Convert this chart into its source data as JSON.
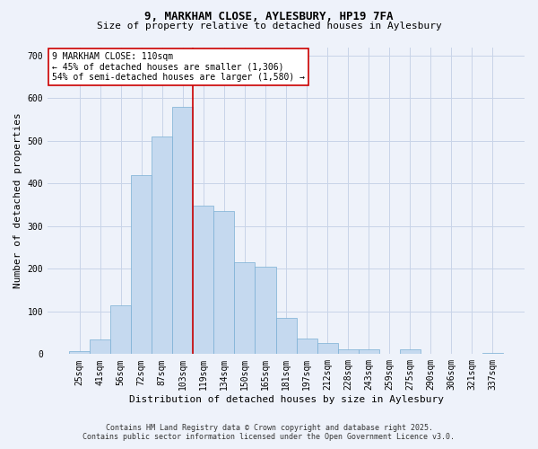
{
  "title1": "9, MARKHAM CLOSE, AYLESBURY, HP19 7FA",
  "title2": "Size of property relative to detached houses in Aylesbury",
  "xlabel": "Distribution of detached houses by size in Aylesbury",
  "ylabel": "Number of detached properties",
  "bar_labels": [
    "25sqm",
    "41sqm",
    "56sqm",
    "72sqm",
    "87sqm",
    "103sqm",
    "119sqm",
    "134sqm",
    "150sqm",
    "165sqm",
    "181sqm",
    "197sqm",
    "212sqm",
    "228sqm",
    "243sqm",
    "259sqm",
    "275sqm",
    "290sqm",
    "306sqm",
    "321sqm",
    "337sqm"
  ],
  "bar_values": [
    8,
    35,
    115,
    420,
    510,
    580,
    348,
    335,
    215,
    205,
    85,
    36,
    25,
    12,
    12,
    0,
    12,
    0,
    0,
    0,
    3
  ],
  "bar_color": "#c5d9ef",
  "bar_edge_color": "#7aafd4",
  "vline_x": 5.5,
  "vline_color": "#cc0000",
  "annotation_title": "9 MARKHAM CLOSE: 110sqm",
  "annotation_line1": "← 45% of detached houses are smaller (1,306)",
  "annotation_line2": "54% of semi-detached houses are larger (1,580) →",
  "annotation_box_color": "white",
  "annotation_box_edge_color": "#cc0000",
  "ylim": [
    0,
    720
  ],
  "yticks": [
    0,
    100,
    200,
    300,
    400,
    500,
    600,
    700
  ],
  "footer1": "Contains HM Land Registry data © Crown copyright and database right 2025.",
  "footer2": "Contains public sector information licensed under the Open Government Licence v3.0.",
  "background_color": "#eef2fa",
  "title_fontsize": 9,
  "subtitle_fontsize": 8,
  "axis_label_fontsize": 8,
  "tick_fontsize": 7,
  "annotation_fontsize": 7,
  "footer_fontsize": 6
}
